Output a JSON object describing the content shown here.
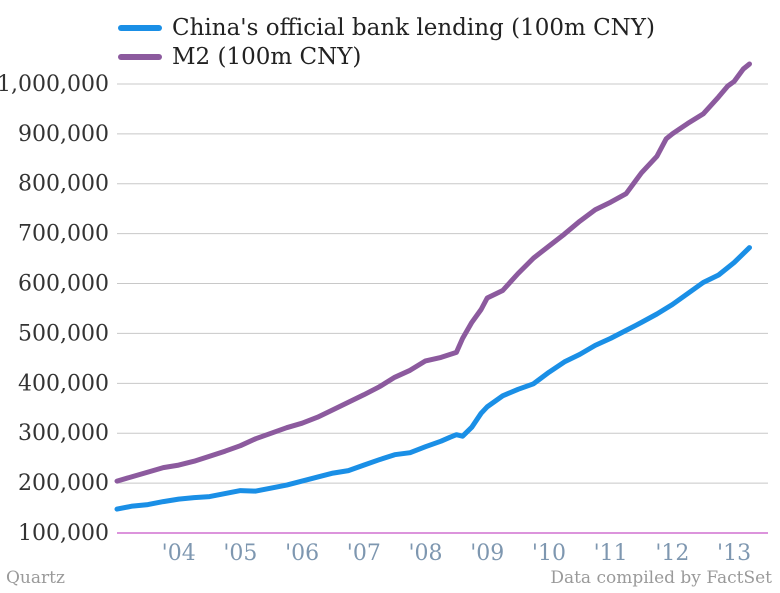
{
  "legend": {
    "series_0": "China's official bank lending (100m CNY)",
    "series_1": "M2 (100m CNY)"
  },
  "footer": {
    "source_left": "Quartz",
    "source_right": "Data compiled by FactSet"
  },
  "chart_data": {
    "type": "line",
    "title": "",
    "xlabel": "",
    "ylabel": "",
    "ylim": [
      100000,
      1050000
    ],
    "xlim": [
      2003.0,
      2013.55
    ],
    "grid": true,
    "legend_position": "top-left",
    "y_ticks": [
      100000,
      200000,
      300000,
      400000,
      500000,
      600000,
      700000,
      800000,
      900000,
      1000000
    ],
    "y_tick_labels": [
      "100,000",
      "200,000",
      "300,000",
      "400,000",
      "500,000",
      "600,000",
      "700,000",
      "800,000",
      "900,000",
      "1,000,000"
    ],
    "x_ticks": [
      2004,
      2005,
      2006,
      2007,
      2008,
      2009,
      2010,
      2011,
      2012,
      2013
    ],
    "x_tick_labels": [
      "'04",
      "'05",
      "'06",
      "'07",
      "'08",
      "'09",
      "'10",
      "'11",
      "'12",
      "'13"
    ],
    "colors": {
      "series_0": "#1a8fe6",
      "series_1": "#8c5a9e",
      "grid": "#c8c8c8",
      "baseline": "#d070d0",
      "y_tick_text": "#333333",
      "x_tick_text": "#7e97b0"
    },
    "series": [
      {
        "name": "China's official bank lending (100m CNY)",
        "color": "#1a8fe6",
        "x": [
          2003.0,
          2003.25,
          2003.5,
          2003.75,
          2004.0,
          2004.25,
          2004.5,
          2004.75,
          2005.0,
          2005.25,
          2005.5,
          2005.75,
          2006.0,
          2006.25,
          2006.5,
          2006.75,
          2007.0,
          2007.25,
          2007.5,
          2007.75,
          2008.0,
          2008.25,
          2008.4,
          2008.5,
          2008.6,
          2008.75,
          2008.9,
          2009.0,
          2009.25,
          2009.5,
          2009.75,
          2010.0,
          2010.25,
          2010.5,
          2010.75,
          2011.0,
          2011.25,
          2011.5,
          2011.75,
          2012.0,
          2012.25,
          2012.5,
          2012.75,
          2013.0,
          2013.25
        ],
        "values": [
          148000,
          154000,
          157000,
          163000,
          168000,
          171000,
          173000,
          179000,
          185000,
          184000,
          190000,
          196000,
          204000,
          212000,
          220000,
          225000,
          236000,
          247000,
          257000,
          261000,
          273000,
          284000,
          292000,
          297000,
          294000,
          312000,
          340000,
          353000,
          375000,
          388000,
          399000,
          422000,
          443000,
          458000,
          476000,
          490000,
          506000,
          522000,
          539000,
          558000,
          580000,
          602000,
          617000,
          642000,
          672000
        ]
      },
      {
        "name": "M2 (100m CNY)",
        "color": "#8c5a9e",
        "x": [
          2003.0,
          2003.25,
          2003.5,
          2003.75,
          2004.0,
          2004.25,
          2004.5,
          2004.75,
          2005.0,
          2005.25,
          2005.5,
          2005.75,
          2006.0,
          2006.25,
          2006.5,
          2006.75,
          2007.0,
          2007.25,
          2007.5,
          2007.75,
          2008.0,
          2008.25,
          2008.5,
          2008.6,
          2008.75,
          2008.9,
          2009.0,
          2009.25,
          2009.5,
          2009.75,
          2010.0,
          2010.25,
          2010.5,
          2010.75,
          2011.0,
          2011.25,
          2011.5,
          2011.75,
          2011.9,
          2012.0,
          2012.25,
          2012.5,
          2012.75,
          2012.9,
          2013.0,
          2013.15,
          2013.25
        ],
        "values": [
          204000,
          213000,
          222000,
          231000,
          236000,
          244000,
          254000,
          264000,
          275000,
          289000,
          300000,
          311000,
          320000,
          332000,
          347000,
          362000,
          377000,
          393000,
          412000,
          426000,
          445000,
          452000,
          462000,
          490000,
          522000,
          548000,
          571000,
          586000,
          620000,
          651000,
          675000,
          699000,
          725000,
          748000,
          763000,
          780000,
          822000,
          855000,
          890000,
          900000,
          921000,
          940000,
          974000,
          996000,
          1005000,
          1030000,
          1040000
        ]
      }
    ]
  }
}
